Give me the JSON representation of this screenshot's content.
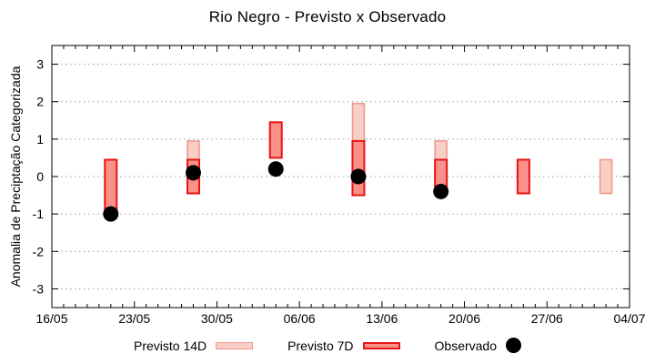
{
  "colors": {
    "background": "#ffffff",
    "axis": "#000000",
    "grid": "#9e9e9e",
    "previsto_14d_fill": "#f8cec5",
    "previsto_14d_border": "#f0968b",
    "previsto_7d_fill": "#f9918a",
    "previsto_7d_border": "#e81414",
    "observado": "#000000"
  },
  "chart_data": {
    "type": "bar",
    "title": "Rio Negro - Previsto x Observado",
    "xlabel": "",
    "ylabel": "Anomalia de Preciptação Categorizada",
    "ylim": [
      -3.5,
      3.5
    ],
    "yticks": [
      -3,
      -2,
      -1,
      0,
      1,
      2,
      3
    ],
    "xtick_labels": [
      "16/05",
      "23/05",
      "30/05",
      "06/06",
      "13/06",
      "20/06",
      "27/06",
      "04/07"
    ],
    "x_day_span": 49,
    "grid": "horizontal dotted lines only",
    "legend_position": "bottom center, outside plot",
    "series": [
      {
        "name": "Previsto 14D",
        "type": "range-bar",
        "color": "#f8cec5",
        "border": "#f0968b",
        "points": [
          {
            "date": "28/05",
            "day": 12,
            "low": -0.45,
            "high": 0.95
          },
          {
            "date": "11/06",
            "day": 26,
            "low": -0.5,
            "high": 1.95
          },
          {
            "date": "18/06",
            "day": 33,
            "low": -0.45,
            "high": 0.95
          },
          {
            "date": "02/07",
            "day": 47,
            "low": -0.45,
            "high": 0.45
          }
        ]
      },
      {
        "name": "Previsto 7D",
        "type": "range-bar",
        "color": "#f9918a",
        "border": "#e81414",
        "points": [
          {
            "date": "21/05",
            "day": 5,
            "low": -0.95,
            "high": 0.45
          },
          {
            "date": "28/05",
            "day": 12,
            "low": -0.45,
            "high": 0.45
          },
          {
            "date": "04/06",
            "day": 19,
            "low": 0.5,
            "high": 1.45
          },
          {
            "date": "11/06",
            "day": 26,
            "low": -0.5,
            "high": 0.95
          },
          {
            "date": "18/06",
            "day": 33,
            "low": -0.45,
            "high": 0.45
          },
          {
            "date": "25/06",
            "day": 40,
            "low": -0.45,
            "high": 0.45
          }
        ]
      },
      {
        "name": "Observado",
        "type": "scatter",
        "color": "#000000",
        "points": [
          {
            "date": "21/05",
            "day": 5,
            "value": -1.0
          },
          {
            "date": "28/05",
            "day": 12,
            "value": 0.1
          },
          {
            "date": "04/06",
            "day": 19,
            "value": 0.2
          },
          {
            "date": "11/06",
            "day": 26,
            "value": 0.0
          },
          {
            "date": "18/06",
            "day": 33,
            "value": -0.4
          }
        ]
      }
    ]
  }
}
